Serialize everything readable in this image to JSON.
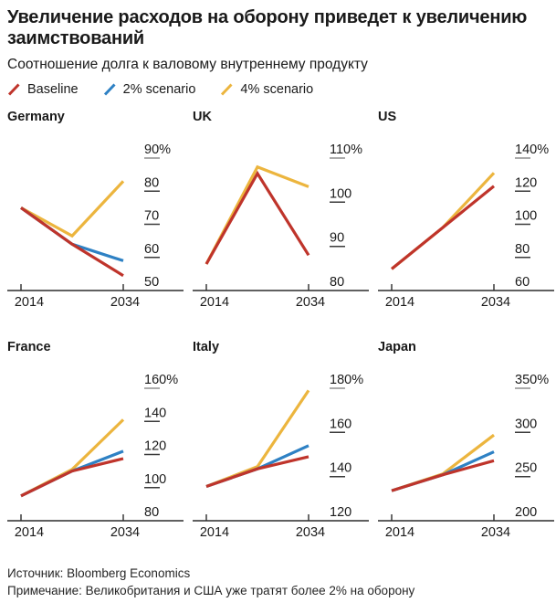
{
  "header": {
    "title_line1": "Увеличение расходов на оборону приведет к увеличению",
    "title_line2": "заимствований",
    "subtitle": "Соотношение долга к валовому внутреннему продукту"
  },
  "legend": [
    {
      "label": "Baseline",
      "color": "#bf342b"
    },
    {
      "label": "2% scenario",
      "color": "#2e81c4"
    },
    {
      "label": "4% scenario",
      "color": "#ecb53e"
    }
  ],
  "colors": {
    "axis": "#2b2b2b",
    "tick_top": "#8f8f8f",
    "tick": "#3a3a3a",
    "text": "#1a1a1a"
  },
  "footer": {
    "source": "Источник: Bloomberg Economics",
    "note": "Примечание: Великобритания и США уже тратят более 2% на оборону"
  },
  "chart_data": [
    {
      "type": "line",
      "title": "Germany",
      "unit": "%",
      "x": [
        2014,
        2024,
        2034
      ],
      "xtick_labels": [
        "2014",
        "2034"
      ],
      "ylim": [
        50,
        90
      ],
      "yticks": [
        90,
        80,
        70,
        60,
        50
      ],
      "ytick_labels": [
        "90%",
        "80",
        "70",
        "60",
        "50"
      ],
      "series": [
        {
          "name": "Baseline",
          "values": [
            75,
            64,
            54.5
          ]
        },
        {
          "name": "2% scenario",
          "values": [
            75,
            64,
            59
          ]
        },
        {
          "name": "4% scenario",
          "values": [
            75,
            66.5,
            83
          ]
        }
      ]
    },
    {
      "type": "line",
      "title": "UK",
      "unit": "%",
      "x": [
        2014,
        2024,
        2034
      ],
      "xtick_labels": [
        "2014",
        "2034"
      ],
      "ylim": [
        80,
        110
      ],
      "yticks": [
        110,
        100,
        90,
        80
      ],
      "ytick_labels": [
        "110%",
        "100",
        "90",
        "80"
      ],
      "series": [
        {
          "name": "Baseline",
          "values": [
            86,
            106.5,
            88
          ]
        },
        {
          "name": "4% scenario",
          "values": [
            86,
            108,
            103.5
          ]
        }
      ]
    },
    {
      "type": "line",
      "title": "US",
      "unit": "%",
      "x": [
        2014,
        2024,
        2034
      ],
      "xtick_labels": [
        "2014",
        "2034"
      ],
      "ylim": [
        60,
        140
      ],
      "yticks": [
        140,
        120,
        100,
        80,
        60
      ],
      "ytick_labels": [
        "140%",
        "120",
        "100",
        "80",
        "60"
      ],
      "series": [
        {
          "name": "Baseline",
          "values": [
            73,
            98,
            123
          ]
        },
        {
          "name": "4% scenario",
          "values": [
            73,
            98,
            131
          ]
        }
      ]
    },
    {
      "type": "line",
      "title": "France",
      "unit": "%",
      "x": [
        2014,
        2024,
        2034
      ],
      "xtick_labels": [
        "2014",
        "2034"
      ],
      "ylim": [
        80,
        160
      ],
      "yticks": [
        160,
        140,
        120,
        100,
        80
      ],
      "ytick_labels": [
        "160%",
        "140",
        "120",
        "100",
        "80"
      ],
      "series": [
        {
          "name": "Baseline",
          "values": [
            95,
            110,
            117.5
          ]
        },
        {
          "name": "2% scenario",
          "values": [
            95,
            110,
            122
          ]
        },
        {
          "name": "4% scenario",
          "values": [
            95,
            111,
            141
          ]
        }
      ]
    },
    {
      "type": "line",
      "title": "Italy",
      "unit": "%",
      "x": [
        2014,
        2024,
        2034
      ],
      "xtick_labels": [
        "2014",
        "2034"
      ],
      "ylim": [
        120,
        180
      ],
      "yticks": [
        180,
        160,
        140,
        120
      ],
      "ytick_labels": [
        "180%",
        "160",
        "140",
        "120"
      ],
      "series": [
        {
          "name": "Baseline",
          "values": [
            135.5,
            143.5,
            149
          ]
        },
        {
          "name": "2% scenario",
          "values": [
            135.5,
            143.5,
            154
          ]
        },
        {
          "name": "4% scenario",
          "values": [
            135.5,
            144.5,
            179
          ]
        }
      ]
    },
    {
      "type": "line",
      "title": "Japan",
      "unit": "%",
      "x": [
        2014,
        2024,
        2034
      ],
      "xtick_labels": [
        "2014",
        "2034"
      ],
      "ylim": [
        200,
        350
      ],
      "yticks": [
        350,
        300,
        250,
        200
      ],
      "ytick_labels": [
        "350%",
        "300",
        "250",
        "200"
      ],
      "series": [
        {
          "name": "Baseline",
          "values": [
            234,
            252,
            268
          ]
        },
        {
          "name": "2% scenario",
          "values": [
            234,
            252,
            278
          ]
        },
        {
          "name": "4% scenario",
          "values": [
            234,
            253,
            297
          ]
        }
      ]
    }
  ]
}
